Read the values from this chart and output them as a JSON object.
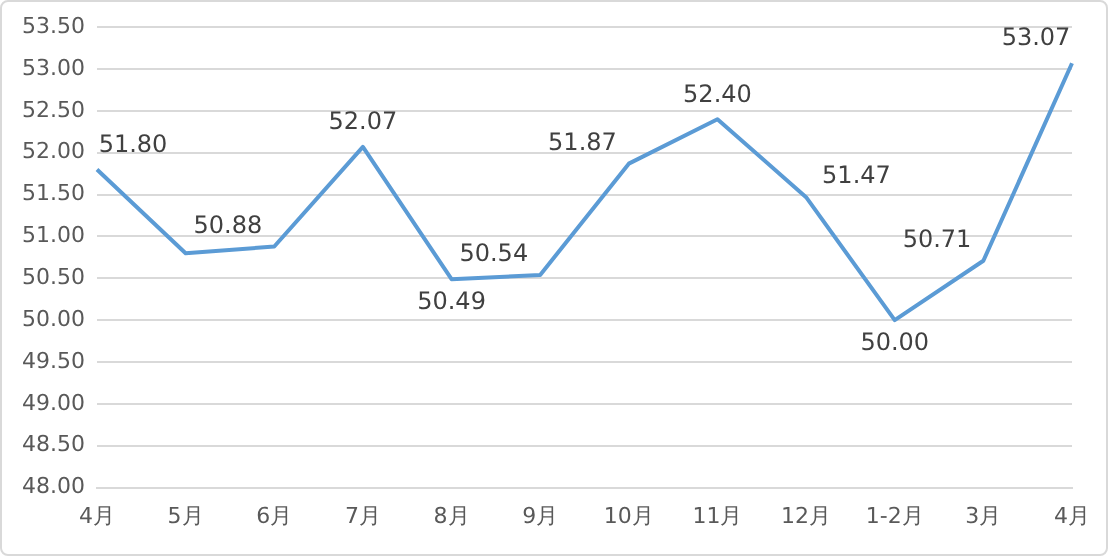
{
  "chart_data": {
    "type": "line",
    "categories": [
      "4月",
      "5月",
      "6月",
      "7月",
      "8月",
      "9月",
      "10月",
      "11月",
      "12月",
      "1-2月",
      "3月",
      "4月"
    ],
    "series": [
      {
        "color": "#5b9bd5",
        "values": [
          51.8,
          50.8,
          50.88,
          52.07,
          50.49,
          50.54,
          51.87,
          52.4,
          51.47,
          50.0,
          50.71,
          53.07
        ],
        "value_labels": [
          "51.80",
          null,
          "50.88",
          "52.07",
          "50.49",
          "50.54",
          "51.87",
          "52.40",
          "51.47",
          "50.00",
          "50.71",
          "53.07"
        ]
      }
    ],
    "ylim": [
      48,
      53.5
    ],
    "yticks": [
      {
        "value": 48,
        "label": "48.00"
      },
      {
        "value": 48.5,
        "label": "48.50"
      },
      {
        "value": 49,
        "label": "49.00"
      },
      {
        "value": 49.5,
        "label": "49.50"
      },
      {
        "value": 50,
        "label": "50.00"
      },
      {
        "value": 50.5,
        "label": "50.50"
      },
      {
        "value": 51,
        "label": "51.00"
      },
      {
        "value": 51.5,
        "label": "51.50"
      },
      {
        "value": 52,
        "label": "52.00"
      },
      {
        "value": 52.5,
        "label": "52.50"
      },
      {
        "value": 53,
        "label": "53.00"
      },
      {
        "value": 53.5,
        "label": "53.50"
      }
    ],
    "grid": "y",
    "legend": false,
    "marker": "none",
    "line_style": "solid"
  }
}
